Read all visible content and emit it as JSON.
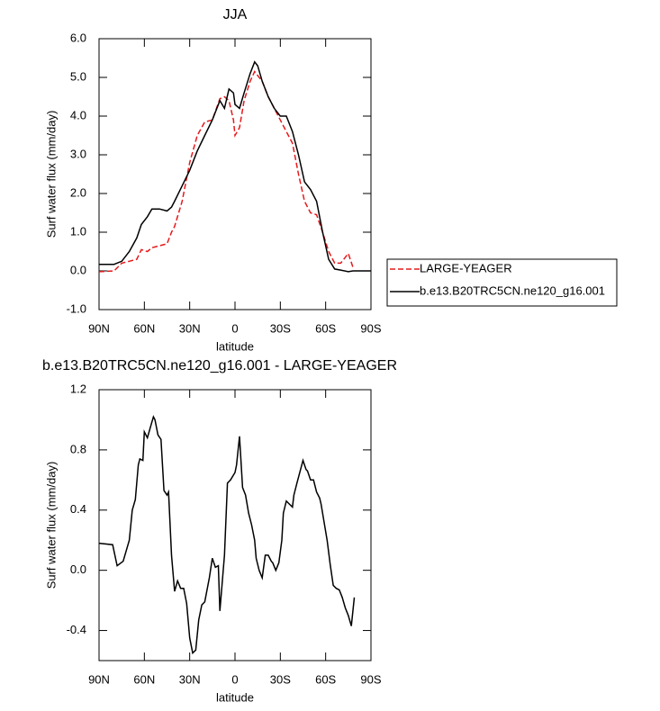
{
  "chart_data": [
    {
      "type": "line",
      "title": "JJA",
      "xlabel": "latitude",
      "ylabel": "Surf water flux (mm/day)",
      "x": [
        90,
        80,
        75,
        70,
        65,
        62,
        58,
        55,
        50,
        45,
        42,
        40,
        35,
        30,
        25,
        20,
        15,
        10,
        7,
        4,
        1,
        0,
        -3,
        -6,
        -10,
        -13,
        -15,
        -18,
        -22,
        -26,
        -30,
        -34,
        -38,
        -42,
        -46,
        -50,
        -54,
        -58,
        -62,
        -66,
        -70,
        -75,
        -78,
        -80,
        -90
      ],
      "series": [
        {
          "name": "LARGE-YEAGER",
          "color": "#e41a1c",
          "dash": true,
          "values": [
            -0.02,
            0.0,
            0.2,
            0.25,
            0.3,
            0.55,
            0.5,
            0.6,
            0.65,
            0.7,
            1.0,
            1.15,
            1.8,
            2.8,
            3.5,
            3.85,
            3.9,
            4.45,
            4.5,
            4.4,
            3.9,
            3.5,
            3.7,
            4.4,
            4.9,
            5.15,
            5.05,
            4.9,
            4.5,
            4.2,
            3.9,
            3.6,
            3.3,
            2.5,
            1.8,
            1.5,
            1.45,
            1.0,
            0.5,
            0.2,
            0.2,
            0.45,
            0.1,
            null,
            null
          ]
        },
        {
          "name": "b.e13.B20TRC5CN.ne120_g16.001",
          "color": "#000000",
          "dash": false,
          "values": [
            0.17,
            0.17,
            0.25,
            0.5,
            0.85,
            1.2,
            1.4,
            1.6,
            1.6,
            1.55,
            1.65,
            1.8,
            2.2,
            2.6,
            3.1,
            3.5,
            3.9,
            4.4,
            4.2,
            4.7,
            4.6,
            4.3,
            4.2,
            4.6,
            5.1,
            5.4,
            5.3,
            4.9,
            4.5,
            4.2,
            4.0,
            4.0,
            3.6,
            3.0,
            2.3,
            2.1,
            1.8,
            1.0,
            0.3,
            0.05,
            0.02,
            -0.02,
            0.0,
            0.0,
            0.0
          ]
        }
      ],
      "xlim": [
        90,
        -90
      ],
      "xticks": [
        {
          "value": 90,
          "label": "90N"
        },
        {
          "value": 60,
          "label": "60N"
        },
        {
          "value": 30,
          "label": "30N"
        },
        0,
        {
          "value": -30,
          "label": "30S"
        },
        {
          "value": -60,
          "label": "60S"
        },
        {
          "value": -90,
          "label": "90S"
        }
      ],
      "ylim": [
        -1.0,
        6.0
      ],
      "yticks": [
        {
          "value": -1,
          "label": "-1.0"
        },
        {
          "value": 0,
          "label": "0.0"
        },
        {
          "value": 1,
          "label": "1.0"
        },
        {
          "value": 2,
          "label": "2.0"
        },
        {
          "value": 3,
          "label": "3.0"
        },
        {
          "value": 4,
          "label": "4.0"
        },
        {
          "value": 5,
          "label": "5.0"
        },
        {
          "value": 6,
          "label": "6.0"
        }
      ],
      "legend": "right"
    },
    {
      "type": "line",
      "title": "b.e13.B20TRC5CN.ne120_g16.001 - LARGE-YEAGER",
      "xlabel": "latitude",
      "ylabel": "Surf water flux (mm/day)",
      "x": [
        90,
        81,
        78,
        74,
        70,
        68,
        66,
        64,
        63,
        61,
        60,
        58,
        56,
        54,
        53,
        51,
        49,
        47,
        45,
        44,
        42,
        40,
        38,
        36,
        34,
        32,
        30,
        28,
        26,
        24,
        22,
        20,
        17,
        15,
        13,
        11,
        10,
        7,
        5,
        3,
        0,
        -1,
        -3,
        -5,
        -7,
        -9,
        -11,
        -13,
        -14,
        -16,
        -18,
        -20,
        -22,
        -24,
        -25,
        -27,
        -29,
        -31,
        -32,
        -34,
        -36,
        -38,
        -39,
        -41,
        -45,
        -47,
        -48,
        -50,
        -52,
        -54,
        -56,
        -57,
        -61,
        -63,
        -65,
        -67,
        -69,
        -71,
        -73,
        -75,
        -77,
        -79
      ],
      "series": [
        {
          "color": "#000000",
          "values": [
            0.18,
            0.17,
            0.03,
            0.06,
            0.2,
            0.4,
            0.47,
            0.7,
            0.74,
            0.73,
            0.92,
            0.88,
            0.95,
            1.02,
            1.0,
            0.9,
            0.87,
            0.53,
            0.5,
            0.52,
            0.1,
            -0.14,
            -0.07,
            -0.12,
            -0.12,
            -0.22,
            -0.45,
            -0.55,
            -0.53,
            -0.33,
            -0.23,
            -0.21,
            -0.05,
            0.08,
            0.02,
            0.03,
            -0.27,
            0.1,
            0.58,
            0.6,
            0.65,
            0.7,
            0.89,
            0.55,
            0.5,
            0.38,
            0.3,
            0.2,
            0.08,
            0.0,
            -0.05,
            0.1,
            0.1,
            0.06,
            0.05,
            0.0,
            0.05,
            0.2,
            0.38,
            0.46,
            0.44,
            0.42,
            0.5,
            0.58,
            0.73,
            0.67,
            0.66,
            0.6,
            0.6,
            0.52,
            0.48,
            0.44,
            0.2,
            0.04,
            -0.1,
            -0.12,
            -0.13,
            -0.18,
            -0.25,
            -0.3,
            -0.37,
            -0.18
          ]
        }
      ],
      "xlim": [
        90,
        -90
      ],
      "xticks": [
        {
          "value": 90,
          "label": "90N"
        },
        {
          "value": 60,
          "label": "60N"
        },
        {
          "value": 30,
          "label": "30N"
        },
        0,
        {
          "value": -30,
          "label": "30S"
        },
        {
          "value": -60,
          "label": "60S"
        },
        {
          "value": -90,
          "label": "90S"
        }
      ],
      "ylim": [
        -0.6,
        1.2
      ],
      "yticks": [
        {
          "value": -0.4,
          "label": "-0.4"
        },
        {
          "value": 0,
          "label": "0.0"
        },
        0.4,
        0.8,
        1.2
      ]
    }
  ]
}
